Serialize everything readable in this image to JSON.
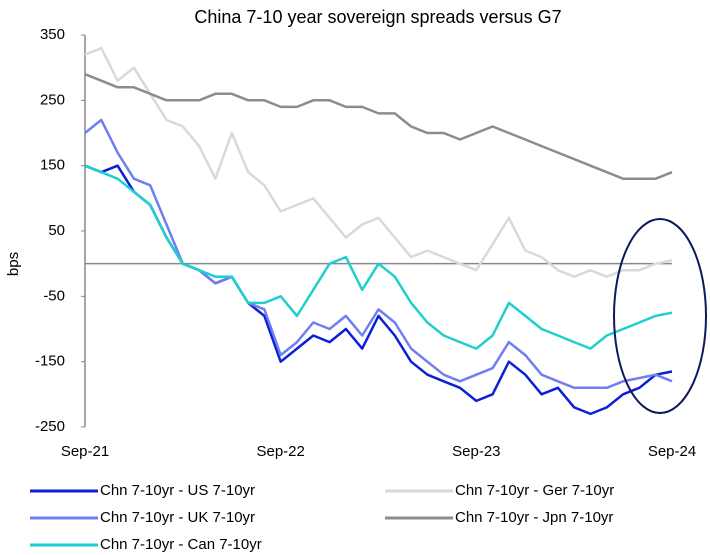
{
  "chart_data": {
    "type": "line",
    "title": "China 7-10 year sovereign spreads versus G7",
    "y_label": "bps",
    "categories": [
      "Sep-21",
      null,
      null,
      null,
      null,
      null,
      null,
      null,
      null,
      null,
      null,
      null,
      "Sep-22",
      null,
      null,
      null,
      null,
      null,
      null,
      null,
      null,
      null,
      null,
      null,
      "Sep-23",
      null,
      null,
      null,
      null,
      null,
      null,
      null,
      null,
      null,
      null,
      null,
      "Sep-24"
    ],
    "series": [
      {
        "name": "Chn 7-10yr - US 7-10yr",
        "color": "#0b1fd6",
        "values": [
          150,
          140,
          150,
          110,
          90,
          40,
          0,
          -10,
          -30,
          -20,
          -60,
          -80,
          -150,
          -130,
          -110,
          -120,
          -100,
          -130,
          -80,
          -110,
          -150,
          -170,
          -180,
          -190,
          -210,
          -200,
          -150,
          -170,
          -200,
          -190,
          -220,
          -230,
          -220,
          -200,
          -190,
          -170,
          -165
        ]
      },
      {
        "name": "Chn 7-10yr - Ger 7-10yr",
        "color": "#d9d9d9",
        "values": [
          320,
          330,
          280,
          300,
          260,
          220,
          210,
          180,
          130,
          200,
          140,
          120,
          80,
          90,
          100,
          70,
          40,
          60,
          70,
          40,
          10,
          20,
          10,
          0,
          -10,
          30,
          70,
          20,
          10,
          -10,
          -20,
          -10,
          -20,
          -10,
          -10,
          0,
          5
        ]
      },
      {
        "name": "Chn 7-10yr - UK 7-10yr",
        "color": "#6f7ef0",
        "values": [
          200,
          220,
          170,
          130,
          120,
          60,
          0,
          -10,
          -30,
          -20,
          -60,
          -70,
          -140,
          -120,
          -90,
          -100,
          -80,
          -110,
          -70,
          -90,
          -130,
          -150,
          -170,
          -180,
          -170,
          -160,
          -120,
          -140,
          -170,
          -180,
          -190,
          -190,
          -190,
          -180,
          -175,
          -170,
          -180
        ]
      },
      {
        "name": "Chn 7-10yr - Jpn 7-10yr",
        "color": "#8c8c8c",
        "values": [
          290,
          280,
          270,
          270,
          260,
          250,
          250,
          250,
          260,
          260,
          250,
          250,
          240,
          240,
          250,
          250,
          240,
          240,
          230,
          230,
          210,
          200,
          200,
          190,
          200,
          210,
          200,
          190,
          180,
          170,
          160,
          150,
          140,
          130,
          130,
          130,
          140
        ]
      },
      {
        "name": "Chn 7-10yr - Can 7-10yr",
        "color": "#1fcfcf",
        "values": [
          150,
          140,
          130,
          110,
          90,
          40,
          0,
          -10,
          -20,
          -20,
          -60,
          -60,
          -50,
          -80,
          -40,
          0,
          10,
          -40,
          0,
          -20,
          -60,
          -90,
          -110,
          -120,
          -130,
          -110,
          -60,
          -80,
          -100,
          -110,
          -120,
          -130,
          -110,
          -100,
          -90,
          -80,
          -75
        ]
      }
    ],
    "ylim": [
      -250,
      350
    ],
    "yticks": [
      -250,
      -150,
      -50,
      50,
      150,
      250,
      350
    ]
  }
}
